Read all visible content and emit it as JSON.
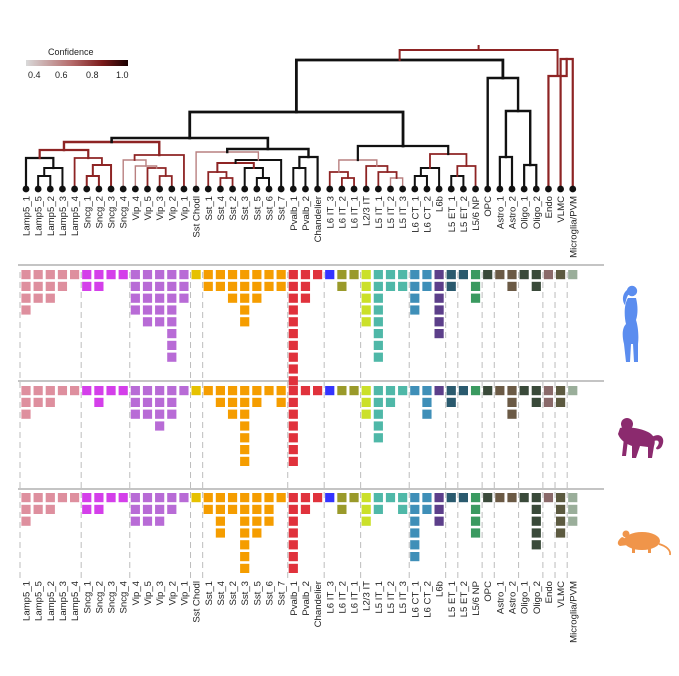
{
  "legend": {
    "title": "Confidence",
    "ticks": [
      "0.4",
      "0.6",
      "0.8",
      "1.0"
    ],
    "gradient_colors": [
      "#d9d9d9",
      "#b56a6a",
      "#7a1a1a",
      "#1a0000"
    ]
  },
  "species": [
    {
      "name": "human-icon",
      "color": "#5b8def"
    },
    {
      "name": "monkey-icon",
      "color": "#8b2a6e"
    },
    {
      "name": "mouse-icon",
      "color": "#f0954a"
    }
  ],
  "cell_types": [
    {
      "label": "Lamp5_1",
      "color": "#de8f9e",
      "counts": [
        4,
        3,
        3
      ]
    },
    {
      "label": "Lamp5_5",
      "color": "#de8f9e",
      "counts": [
        3,
        2,
        2
      ]
    },
    {
      "label": "Lamp5_2",
      "color": "#de8f9e",
      "counts": [
        3,
        2,
        2
      ]
    },
    {
      "label": "Lamp5_3",
      "color": "#de8f9e",
      "counts": [
        2,
        1,
        1
      ]
    },
    {
      "label": "Lamp5_4",
      "color": "#de8f9e",
      "counts": [
        1,
        1,
        1
      ]
    },
    {
      "label": "Sncg_1",
      "color": "#d43fea",
      "counts": [
        2,
        1,
        2
      ]
    },
    {
      "label": "Sncg_2",
      "color": "#d43fea",
      "counts": [
        2,
        2,
        2
      ]
    },
    {
      "label": "Sncg_3",
      "color": "#d43fea",
      "counts": [
        1,
        1,
        1
      ]
    },
    {
      "label": "Sncg_4",
      "color": "#d43fea",
      "counts": [
        1,
        1,
        1
      ]
    },
    {
      "label": "Vip_4",
      "color": "#b86bd6",
      "counts": [
        4,
        3,
        3
      ]
    },
    {
      "label": "Vip_5",
      "color": "#b86bd6",
      "counts": [
        5,
        3,
        3
      ]
    },
    {
      "label": "Vip_3",
      "color": "#b86bd6",
      "counts": [
        5,
        4,
        3
      ]
    },
    {
      "label": "Vip_2",
      "color": "#b86bd6",
      "counts": [
        8,
        3,
        2
      ]
    },
    {
      "label": "Vip_1",
      "color": "#b86bd6",
      "counts": [
        3,
        1,
        1
      ]
    },
    {
      "label": "Sst Chodl",
      "color": "#e6c100",
      "counts": [
        1,
        1,
        1
      ]
    },
    {
      "label": "Sst_1",
      "color": "#f59d00",
      "counts": [
        2,
        1,
        2
      ]
    },
    {
      "label": "Sst_4",
      "color": "#f59d00",
      "counts": [
        2,
        2,
        4
      ]
    },
    {
      "label": "Sst_2",
      "color": "#f59d00",
      "counts": [
        3,
        3,
        2
      ]
    },
    {
      "label": "Sst_3",
      "color": "#f59d00",
      "counts": [
        5,
        7,
        7
      ]
    },
    {
      "label": "Sst_5",
      "color": "#f59d00",
      "counts": [
        3,
        2,
        4
      ]
    },
    {
      "label": "Sst_6",
      "color": "#f59d00",
      "counts": [
        2,
        1,
        3
      ]
    },
    {
      "label": "Sst_7",
      "color": "#f59d00",
      "counts": [
        2,
        2,
        1
      ]
    },
    {
      "label": "Pvalb_1",
      "color": "#e0323c",
      "counts": [
        10,
        7,
        7
      ]
    },
    {
      "label": "Pvalb_2",
      "color": "#e0323c",
      "counts": [
        3,
        1,
        2
      ]
    },
    {
      "label": "Chandelier",
      "color": "#e0323c",
      "counts": [
        1,
        1,
        1
      ]
    },
    {
      "label": "L6 IT_3",
      "color": "#3333ff",
      "counts": [
        1,
        1,
        1
      ]
    },
    {
      "label": "L6 IT_2",
      "color": "#9a9a2a",
      "counts": [
        2,
        1,
        2
      ]
    },
    {
      "label": "L6 IT_1",
      "color": "#9a9a2a",
      "counts": [
        1,
        1,
        1
      ]
    },
    {
      "label": "L2/3 IT",
      "color": "#cbe02a",
      "counts": [
        5,
        3,
        3
      ]
    },
    {
      "label": "L5 IT_1",
      "color": "#4fb8a8",
      "counts": [
        8,
        5,
        2
      ]
    },
    {
      "label": "L5 IT_2",
      "color": "#4fb8a8",
      "counts": [
        2,
        2,
        1
      ]
    },
    {
      "label": "L5 IT_3",
      "color": "#4fb8a8",
      "counts": [
        2,
        1,
        2
      ]
    },
    {
      "label": "L6 CT_1",
      "color": "#3f8fb8",
      "counts": [
        4,
        1,
        6
      ]
    },
    {
      "label": "L6 CT_2",
      "color": "#3f8fb8",
      "counts": [
        2,
        3,
        2
      ]
    },
    {
      "label": "L6b",
      "color": "#5c3f8a",
      "counts": [
        6,
        1,
        3
      ]
    },
    {
      "label": "L5 ET_1",
      "color": "#2a5a6e",
      "counts": [
        2,
        2,
        1
      ]
    },
    {
      "label": "L5 ET_2",
      "color": "#2a5a6e",
      "counts": [
        1,
        1,
        1
      ]
    },
    {
      "label": "L5/6 NP",
      "color": "#3a9a60",
      "counts": [
        3,
        1,
        4
      ]
    },
    {
      "label": "OPC",
      "color": "#3a4a3a",
      "counts": [
        1,
        1,
        1
      ]
    },
    {
      "label": "Astro_1",
      "color": "#6b5a45",
      "counts": [
        1,
        1,
        1
      ]
    },
    {
      "label": "Astro_2",
      "color": "#6b5a45",
      "counts": [
        2,
        3,
        1
      ]
    },
    {
      "label": "Oligo_1",
      "color": "#3a4a3a",
      "counts": [
        1,
        1,
        1
      ]
    },
    {
      "label": "Oligo_2",
      "color": "#3a4a3a",
      "counts": [
        2,
        2,
        5
      ]
    },
    {
      "label": "Endo",
      "color": "#8a6a6a",
      "counts": [
        1,
        2,
        1
      ]
    },
    {
      "label": "VLMC",
      "color": "#5c5a40",
      "counts": [
        1,
        2,
        4
      ]
    },
    {
      "label": "Microglia/PVM",
      "color": "#9aae9a",
      "counts": [
        1,
        1,
        3
      ]
    }
  ]
}
